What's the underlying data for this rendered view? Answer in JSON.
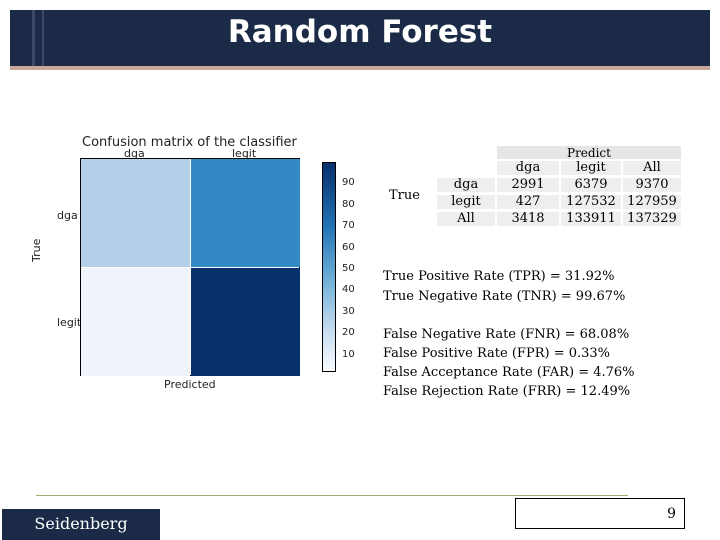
{
  "title": "Random Forest",
  "confusion_figure": {
    "title": "Confusion matrix of the classifier",
    "col_labels": [
      "dga",
      "legit"
    ],
    "row_labels": [
      "dga",
      "legit"
    ],
    "ylabel": "True",
    "xlabel": "Predicted",
    "colorbar_ticks": [
      "90",
      "80",
      "70",
      "60",
      "50",
      "40",
      "30",
      "20",
      "10"
    ]
  },
  "table": {
    "true_label": "True",
    "predict_label": "Predict",
    "header": [
      "dga",
      "legit",
      "All"
    ],
    "rows": [
      {
        "label": "dga",
        "values": [
          "2991",
          "6379",
          "9370"
        ]
      },
      {
        "label": "legit",
        "values": [
          "427",
          "127532",
          "127959"
        ]
      },
      {
        "label": "All",
        "values": [
          "3418",
          "133911",
          "137329"
        ]
      }
    ]
  },
  "rates": [
    "True Positive Rate (TPR) = 31.92%",
    "True Negative Rate (TNR) = 99.67%",
    "False Negative Rate (FNR) = 68.08%",
    "False Positive Rate (FPR) = 0.33%",
    "False Acceptance Rate (FAR) = 4.76%",
    "False Rejection Rate (FRR) = 12.49%"
  ],
  "footer": {
    "logo": "Seidenberg",
    "page_number": "9"
  }
}
